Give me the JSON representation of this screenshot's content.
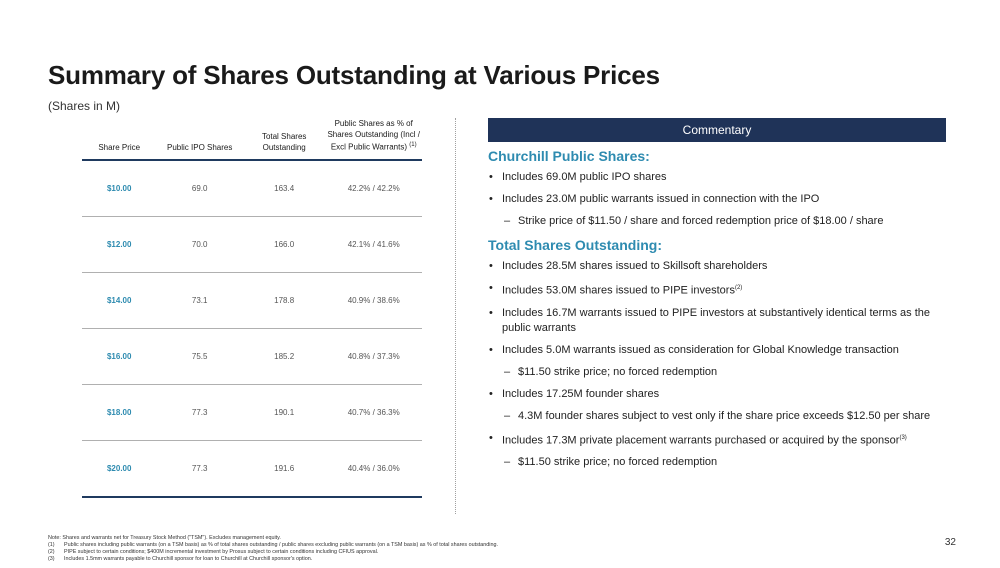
{
  "header": {
    "title": "Summary of Shares Outstanding at Various Prices",
    "subtitle": "(Shares in M)"
  },
  "table": {
    "columns": [
      "Share Price",
      "Public IPO Shares",
      "Total Shares Outstanding",
      "Public Shares as % of Shares Outstanding (Incl / Excl Public Warrants)",
      "(1)"
    ],
    "rows": [
      [
        "$10.00",
        "69.0",
        "163.4",
        "42.2% / 42.2%"
      ],
      [
        "$12.00",
        "70.0",
        "166.0",
        "42.1% / 41.6%"
      ],
      [
        "$14.00",
        "73.1",
        "178.8",
        "40.9% / 38.6%"
      ],
      [
        "$16.00",
        "75.5",
        "185.2",
        "40.8% / 37.3%"
      ],
      [
        "$18.00",
        "77.3",
        "190.1",
        "40.7% / 36.3%"
      ],
      [
        "$20.00",
        "77.3",
        "191.6",
        "40.4% / 36.0%"
      ]
    ]
  },
  "commentary": {
    "header": "Commentary",
    "section1_title": "Churchill Public Shares:",
    "s1_b1": "Includes 69.0M public IPO shares",
    "s1_b2": "Includes 23.0M public warrants issued in connection with the IPO",
    "s1_b2_sub": "Strike price of $11.50 / share and forced redemption price of $18.00 / share",
    "section2_title": "Total Shares Outstanding:",
    "s2_b1": "Includes 28.5M shares issued to Skillsoft shareholders",
    "s2_b2": "Includes 53.0M shares issued to PIPE investors",
    "s2_b2_sup": "(2)",
    "s2_b3": "Includes 16.7M warrants issued to PIPE investors at substantively identical terms as the public warrants",
    "s2_b4": "Includes 5.0M warrants issued as consideration for Global Knowledge transaction",
    "s2_b4_sub": "$11.50 strike price; no forced redemption",
    "s2_b5": "Includes 17.25M founder shares",
    "s2_b5_sub": "4.3M founder shares subject to vest only if the share price exceeds $12.50 per share",
    "s2_b6": "Includes 17.3M private placement warrants purchased or acquired by the sponsor",
    "s2_b6_sup": "(3)",
    "s2_b6_sub": "$11.50 strike price; no forced redemption"
  },
  "notes": {
    "line0": "Note: Shares and warrants net for Treasury Stock Method (\"TSM\"). Excludes management equity.",
    "k1": "(1)",
    "n1": "Public shares including public warrants (on a TSM basis) as % of total shares outstanding / public shares excluding public warrants (on a TSM basis) as % of total shares outstanding.",
    "k2": "(2)",
    "n2": "PIPE subject to certain conditions; $400M incremental investment by Prosus subject to certain conditions including CFIUS approval.",
    "k3": "(3)",
    "n3": "Includes 1.5mm warrants payable to Churchill sponsor for loan to Churchill at Churchill sponsor's option."
  },
  "page_number": "32",
  "colors": {
    "accent_blue": "#2e8bb0",
    "navy": "#1f3358"
  }
}
